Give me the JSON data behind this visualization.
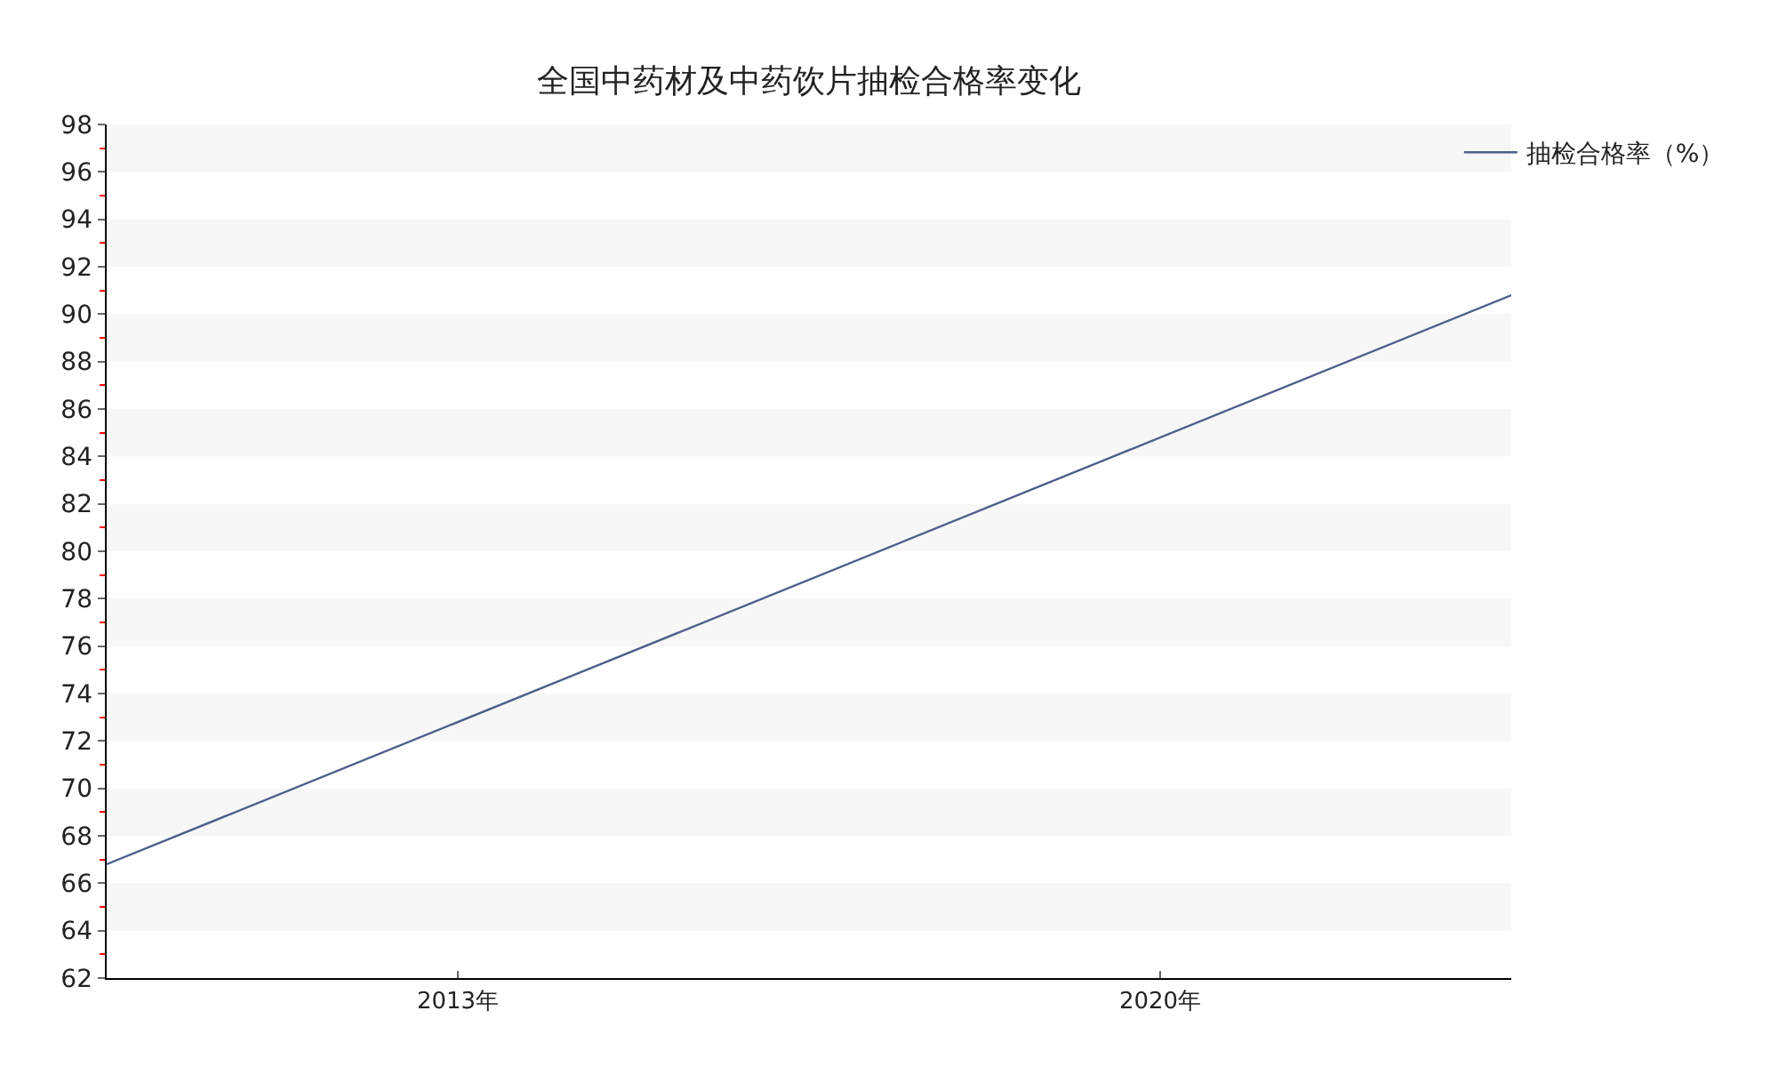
{
  "chart_data": {
    "type": "line",
    "title": "全国中药材及中药饮片抽检合格率变化",
    "x": [
      2009.5,
      2023.5
    ],
    "series": [
      {
        "name": "抽检合格率（%）",
        "color": "#4a5f8a",
        "values": [
          66.8,
          90.8
        ]
      }
    ],
    "xlim": [
      2009.5,
      2023.5
    ],
    "xticks": [
      {
        "value": 2013,
        "label": "2013年"
      },
      {
        "value": 2020,
        "label": "2020年"
      }
    ],
    "ylim": [
      62,
      98
    ],
    "yticks": [
      62,
      {
        "value": 63,
        "label": null
      },
      64,
      {
        "value": 65,
        "label": null
      },
      66,
      {
        "value": 67,
        "label": null
      },
      68,
      {
        "value": 69,
        "label": null
      },
      70,
      {
        "value": 71,
        "label": null
      },
      72,
      {
        "value": 73,
        "label": null
      },
      74,
      {
        "value": 75,
        "label": null
      },
      76,
      {
        "value": 77,
        "label": null
      },
      78,
      {
        "value": 79,
        "label": null
      },
      80,
      {
        "value": 81,
        "label": null
      },
      82,
      {
        "value": 83,
        "label": null
      },
      84,
      {
        "value": 85,
        "label": null
      },
      86,
      {
        "value": 87,
        "label": null
      },
      88,
      {
        "value": 89,
        "label": null
      },
      90,
      {
        "value": 91,
        "label": null
      },
      92,
      {
        "value": 93,
        "label": null
      },
      94,
      {
        "value": 95,
        "label": null
      },
      96,
      {
        "value": 97,
        "label": null
      },
      98
    ],
    "legend": "top right",
    "marker": "none",
    "line_style": "solid"
  }
}
